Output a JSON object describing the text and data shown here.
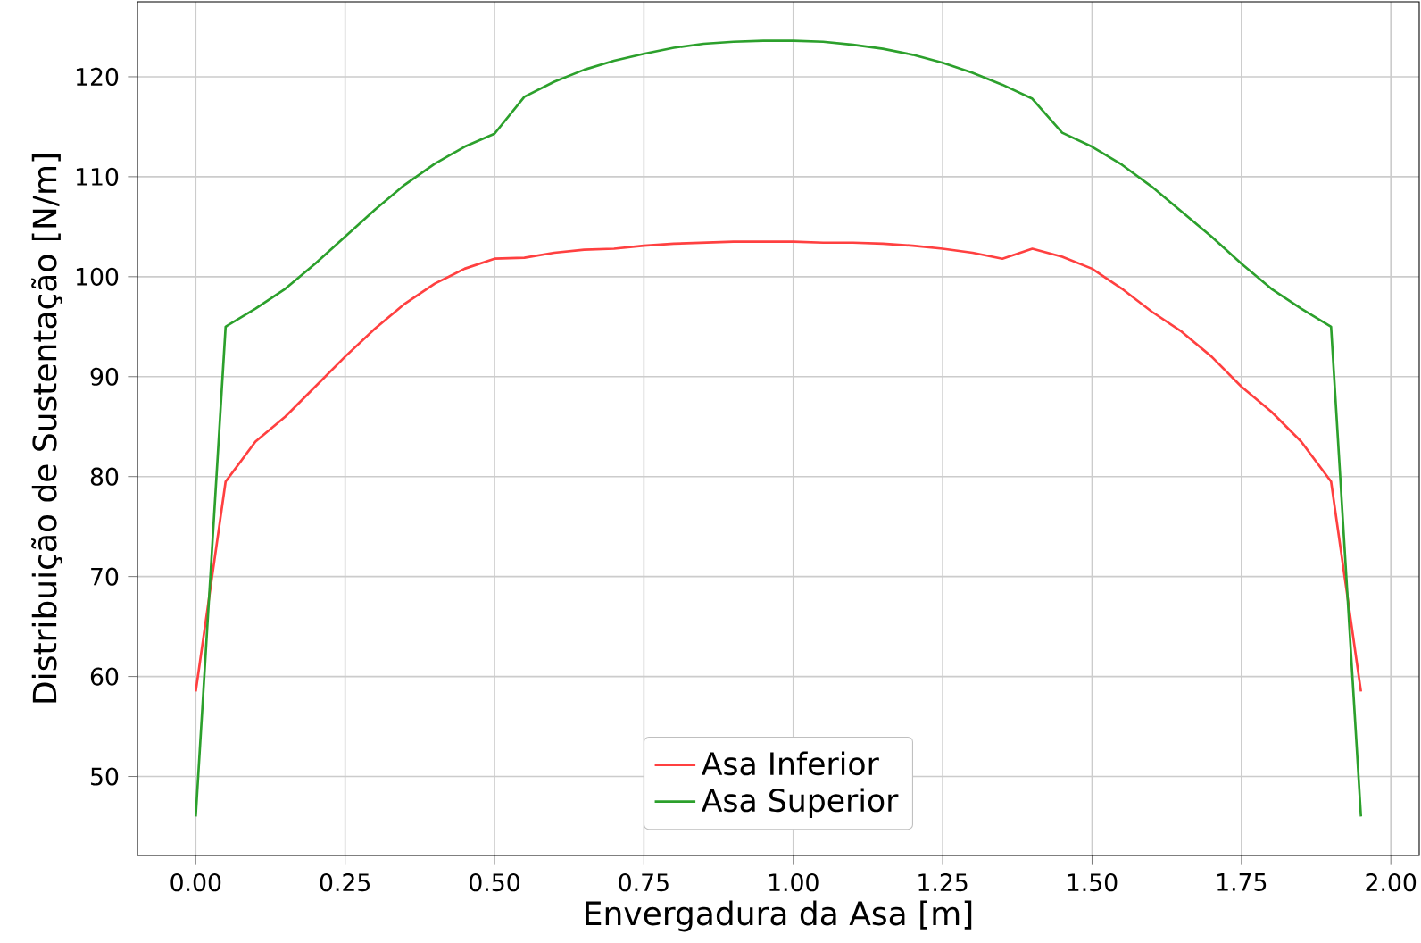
{
  "chart_data": {
    "type": "line",
    "xlabel": "Envergadura da Asa [m]",
    "ylabel": "Distribuição de Sustentação [N/m]",
    "x": [
      0,
      0.05,
      0.1,
      0.15,
      0.2,
      0.25,
      0.3,
      0.35,
      0.4,
      0.45,
      0.5,
      0.55,
      0.6,
      0.65,
      0.7,
      0.75,
      0.8,
      0.85,
      0.9,
      0.95,
      1.0,
      1.05,
      1.1,
      1.15,
      1.2,
      1.25,
      1.3,
      1.35,
      1.4,
      1.45,
      1.5,
      1.55,
      1.6,
      1.65,
      1.7,
      1.75,
      1.8,
      1.85,
      1.9,
      1.95
    ],
    "series": [
      {
        "name": "Asa Inferior",
        "color": "#ff4040",
        "values": [
          58.5,
          79.5,
          83.5,
          86,
          89,
          92,
          94.8,
          97.3,
          99.3,
          100.8,
          101.8,
          101.9,
          102.4,
          102.7,
          102.8,
          103.1,
          103.3,
          103.4,
          103.5,
          103.5,
          103.5,
          103.4,
          103.4,
          103.3,
          103.1,
          102.8,
          102.4,
          101.8,
          102.8,
          102,
          100.8,
          98.8,
          96.5,
          94.5,
          92,
          89,
          86.5,
          83.5,
          79.5,
          58.5
        ]
      },
      {
        "name": "Asa Superior",
        "color": "#2ca02c",
        "values": [
          46,
          95,
          96.8,
          98.8,
          101.3,
          104,
          106.7,
          109.2,
          111.3,
          113,
          114.3,
          118,
          119.5,
          120.7,
          121.6,
          122.3,
          122.9,
          123.3,
          123.5,
          123.6,
          123.6,
          123.5,
          123.2,
          122.8,
          122.2,
          121.4,
          120.4,
          119.2,
          117.8,
          114.4,
          113,
          111.2,
          109,
          106.5,
          104,
          101.3,
          98.8,
          96.8,
          95,
          46
        ]
      }
    ],
    "xlim": [
      -0.0975,
      2.0475
    ],
    "ylim": [
      42.1,
      127.5
    ],
    "xticks": [
      {
        "value": 0,
        "label": "0.00"
      },
      {
        "value": 0.25,
        "label": "0.25"
      },
      {
        "value": 0.5,
        "label": "0.50"
      },
      {
        "value": 0.75,
        "label": "0.75"
      },
      {
        "value": 1.0,
        "label": "1.00"
      },
      {
        "value": 1.25,
        "label": "1.25"
      },
      {
        "value": 1.5,
        "label": "1.50"
      },
      {
        "value": 1.75,
        "label": "1.75"
      },
      {
        "value": 2.0,
        "label": "2.00"
      }
    ],
    "yticks": [
      50,
      60,
      70,
      80,
      90,
      100,
      110,
      120
    ],
    "grid": true,
    "legend": "bottom",
    "marker": "none",
    "line_style": "solid"
  }
}
